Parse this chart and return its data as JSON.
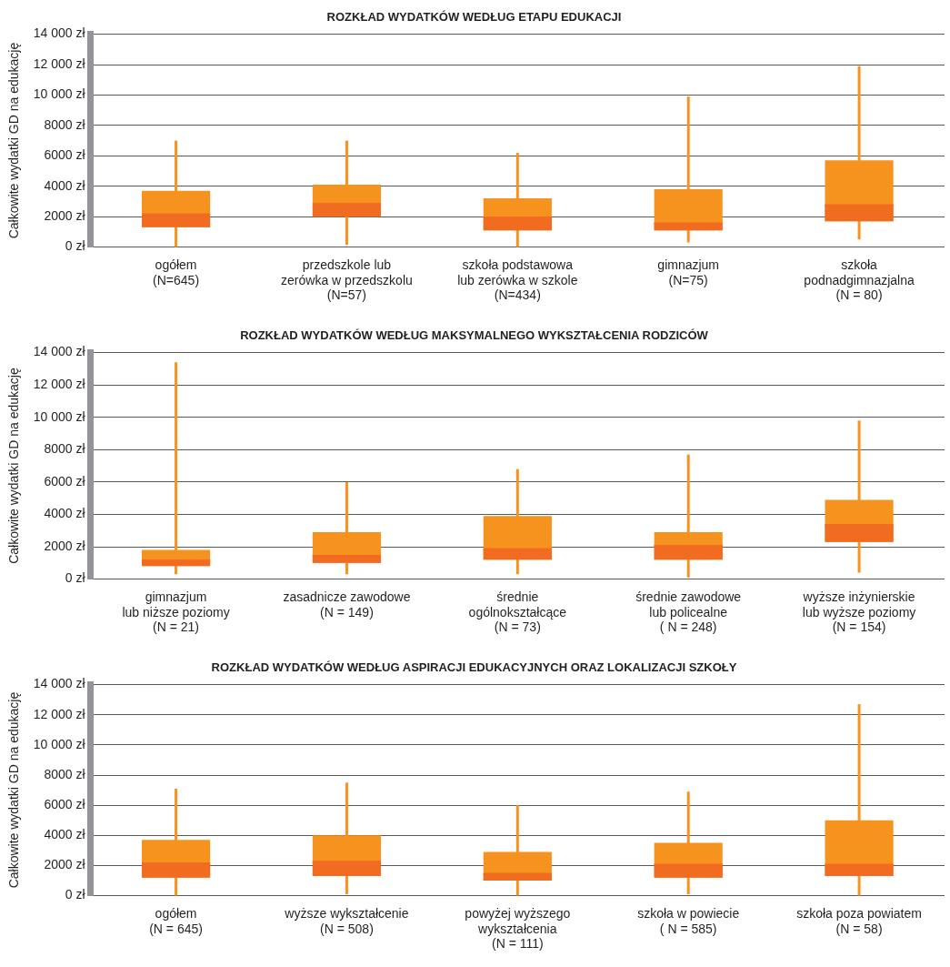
{
  "chart_data": [
    {
      "type": "box",
      "title": "ROZKŁAD WYDATKÓW WEDŁUG ETAPU EDUKACJI",
      "ylabel": "Całkowite wydatki GD na edukację",
      "categories": [
        "ogółem\n(N=645)",
        "przedszkole lub\nzerówka w przedszkolu\n(N=57)",
        "szkoła podstawowa\nlub zerówka w szkole\n(N=434)",
        "gimnazjum\n(N=75)",
        "szkoła\npodnadgimnazjalna\n(N = 80)"
      ],
      "series": [
        {
          "color": "#f6921e",
          "boxes": [
            {
              "low": 0,
              "q1": 1300,
              "median": 2200,
              "q3": 3700,
              "high": 7000
            },
            {
              "low": 150,
              "q1": 2000,
              "median": 2900,
              "q3": 4100,
              "high": 7000
            },
            {
              "low": 0,
              "q1": 1100,
              "median": 2000,
              "q3": 3200,
              "high": 6200
            },
            {
              "low": 300,
              "q1": 1100,
              "median": 1600,
              "q3": 3800,
              "high": 9900
            },
            {
              "low": 500,
              "q1": 1700,
              "median": 2800,
              "q3": 5700,
              "high": 11900
            }
          ]
        }
      ],
      "ylim": [
        0,
        14000
      ],
      "yticks": [
        {
          "value": 0,
          "label": "0 zł"
        },
        {
          "value": 2000,
          "label": "2000 zł"
        },
        {
          "value": 4000,
          "label": "4000 zł"
        },
        {
          "value": 6000,
          "label": "6000 zł"
        },
        {
          "value": 8000,
          "label": "8000 zł"
        },
        {
          "value": 10000,
          "label": "10 000 zł"
        },
        {
          "value": 12000,
          "label": "12 000 zł"
        },
        {
          "value": 14000,
          "label": "14 000 zł"
        }
      ],
      "grid": "y"
    },
    {
      "type": "box",
      "title": "ROZKŁAD WYDATKÓW WEDŁUG MAKSYMALNEGO WYKSZTAŁCENIA RODZICÓW",
      "ylabel": "Całkowite wydatki GD na edukację",
      "categories": [
        "gimnazjum\nlub niższe poziomy\n(N = 21)",
        "zasadnicze zawodowe\n(N = 149)",
        "średnie\nogólnokształcące\n(N = 73)",
        "średnie zawodowe\nlub policealne\n( N = 248)",
        "wyższe inżynierskie\nlub wyższe poziomy\n(N = 154)"
      ],
      "series": [
        {
          "color": "#f6921e",
          "boxes": [
            {
              "low": 300,
              "q1": 800,
              "median": 1200,
              "q3": 1800,
              "high": 13400
            },
            {
              "low": 300,
              "q1": 1000,
              "median": 1500,
              "q3": 2900,
              "high": 6000
            },
            {
              "low": 300,
              "q1": 1200,
              "median": 1900,
              "q3": 3900,
              "high": 6800
            },
            {
              "low": 100,
              "q1": 1200,
              "median": 2100,
              "q3": 2900,
              "high": 7700
            },
            {
              "low": 400,
              "q1": 2300,
              "median": 3400,
              "q3": 4900,
              "high": 9800
            }
          ]
        }
      ],
      "ylim": [
        0,
        14000
      ],
      "yticks": [
        {
          "value": 0,
          "label": "0 zł"
        },
        {
          "value": 2000,
          "label": "2000 zł"
        },
        {
          "value": 4000,
          "label": "4000 zł"
        },
        {
          "value": 6000,
          "label": "6000 zł"
        },
        {
          "value": 8000,
          "label": "8000 zł"
        },
        {
          "value": 10000,
          "label": "10 000 zł"
        },
        {
          "value": 12000,
          "label": "12 000 zł"
        },
        {
          "value": 14000,
          "label": "14 000 zł"
        }
      ],
      "grid": "y"
    },
    {
      "type": "box",
      "title": "ROZKŁAD WYDATKÓW WEDŁUG ASPIRACJI EDUKACYJNYCH ORAZ LOKALIZACJI SZKOŁY",
      "ylabel": "Całkowite wydatki GD na edukację",
      "categories": [
        "ogółem\n(N = 645)",
        "wyższe wykształcenie\n(N = 508)",
        "powyżej wyższego\nwykształcenia\n(N = 111)",
        "szkoła w powiecie\n( N = 585)",
        "szkoła poza powiatem\n(N = 58)"
      ],
      "series": [
        {
          "color": "#f6921e",
          "boxes": [
            {
              "low": 0,
              "q1": 1200,
              "median": 2200,
              "q3": 3700,
              "high": 7100
            },
            {
              "low": 100,
              "q1": 1300,
              "median": 2300,
              "q3": 4000,
              "high": 7500
            },
            {
              "low": 0,
              "q1": 1000,
              "median": 1500,
              "q3": 2900,
              "high": 6000
            },
            {
              "low": 100,
              "q1": 1200,
              "median": 2100,
              "q3": 3500,
              "high": 6900
            },
            {
              "low": 0,
              "q1": 1300,
              "median": 2100,
              "q3": 5000,
              "high": 12700
            }
          ]
        }
      ],
      "ylim": [
        0,
        14000
      ],
      "yticks": [
        {
          "value": 0,
          "label": "0 zł"
        },
        {
          "value": 2000,
          "label": "2000 zł"
        },
        {
          "value": 4000,
          "label": "4000 zł"
        },
        {
          "value": 6000,
          "label": "6000 zł"
        },
        {
          "value": 8000,
          "label": "8000 zł"
        },
        {
          "value": 10000,
          "label": "10 000 zł"
        },
        {
          "value": 12000,
          "label": "12 000 zł"
        },
        {
          "value": 14000,
          "label": "14 000 zł"
        }
      ],
      "grid": "y"
    }
  ]
}
